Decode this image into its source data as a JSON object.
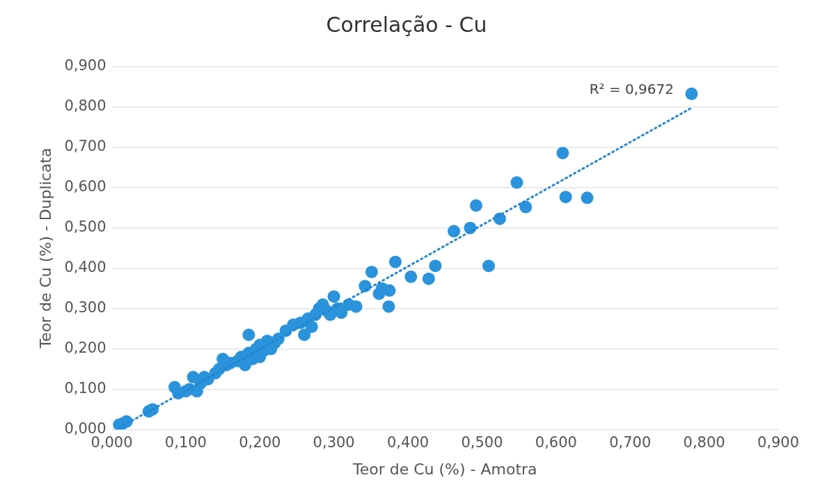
{
  "chart_data": {
    "type": "scatter",
    "title": "Correlação - Cu",
    "xlabel": "Teor de Cu (%) - Amotra",
    "ylabel": "Teor de Cu (%) - Duplicata",
    "xlim": [
      0,
      0.9
    ],
    "ylim": [
      0,
      0.9
    ],
    "xticks": [
      {
        "value": 0,
        "label": "0,000"
      },
      {
        "value": 0.1,
        "label": "0,100"
      },
      {
        "value": 0.2,
        "label": "0,200"
      },
      {
        "value": 0.3,
        "label": "0,300"
      },
      {
        "value": 0.4,
        "label": "0,400"
      },
      {
        "value": 0.5,
        "label": "0,500"
      },
      {
        "value": 0.6,
        "label": "0,600"
      },
      {
        "value": 0.7,
        "label": "0,700"
      },
      {
        "value": 0.8,
        "label": "0,800"
      },
      {
        "value": 0.9,
        "label": "0,900"
      }
    ],
    "yticks": [
      {
        "value": 0,
        "label": "0,000"
      },
      {
        "value": 0.1,
        "label": "0,100"
      },
      {
        "value": 0.2,
        "label": "0,200"
      },
      {
        "value": 0.3,
        "label": "0,300"
      },
      {
        "value": 0.4,
        "label": "0,400"
      },
      {
        "value": 0.5,
        "label": "0,500"
      },
      {
        "value": 0.6,
        "label": "0,600"
      },
      {
        "value": 0.7,
        "label": "0,700"
      },
      {
        "value": 0.8,
        "label": "0,800"
      },
      {
        "value": 0.9,
        "label": "0,900"
      }
    ],
    "grid": "y",
    "legend": false,
    "marker": "circle",
    "series": [
      {
        "color": "#2a93dc",
        "x": [
          0.01,
          0.015,
          0.02,
          0.05,
          0.055,
          0.085,
          0.09,
          0.1,
          0.105,
          0.115,
          0.11,
          0.12,
          0.125,
          0.13,
          0.14,
          0.145,
          0.15,
          0.155,
          0.16,
          0.17,
          0.175,
          0.18,
          0.185,
          0.185,
          0.19,
          0.195,
          0.2,
          0.2,
          0.205,
          0.21,
          0.215,
          0.22,
          0.225,
          0.235,
          0.245,
          0.255,
          0.26,
          0.265,
          0.27,
          0.275,
          0.28,
          0.285,
          0.29,
          0.295,
          0.3,
          0.305,
          0.31,
          0.32,
          0.33,
          0.342,
          0.351,
          0.361,
          0.365,
          0.375,
          0.374,
          0.383,
          0.404,
          0.428,
          0.437,
          0.462,
          0.484,
          0.492,
          0.509,
          0.524,
          0.547,
          0.559,
          0.609,
          0.613,
          0.642,
          0.783
        ],
        "values": [
          0.012,
          0.015,
          0.02,
          0.045,
          0.05,
          0.105,
          0.09,
          0.095,
          0.1,
          0.095,
          0.13,
          0.115,
          0.13,
          0.125,
          0.14,
          0.15,
          0.175,
          0.16,
          0.165,
          0.17,
          0.18,
          0.16,
          0.19,
          0.235,
          0.175,
          0.2,
          0.18,
          0.21,
          0.195,
          0.22,
          0.2,
          0.215,
          0.225,
          0.245,
          0.26,
          0.265,
          0.235,
          0.275,
          0.255,
          0.285,
          0.3,
          0.31,
          0.295,
          0.285,
          0.33,
          0.3,
          0.29,
          0.31,
          0.305,
          0.356,
          0.391,
          0.337,
          0.35,
          0.345,
          0.305,
          0.416,
          0.379,
          0.374,
          0.406,
          0.492,
          0.5,
          0.556,
          0.406,
          0.523,
          0.613,
          0.552,
          0.686,
          0.577,
          0.575,
          0.833
        ]
      },
      {
        "type": "line",
        "color": "#1f86d0",
        "line_style": "dotted",
        "marker": "none",
        "x": [
          0.01,
          0.783
        ],
        "values": [
          0.004,
          0.798
        ]
      }
    ],
    "annotations": [
      "R² = 0,9672"
    ]
  }
}
